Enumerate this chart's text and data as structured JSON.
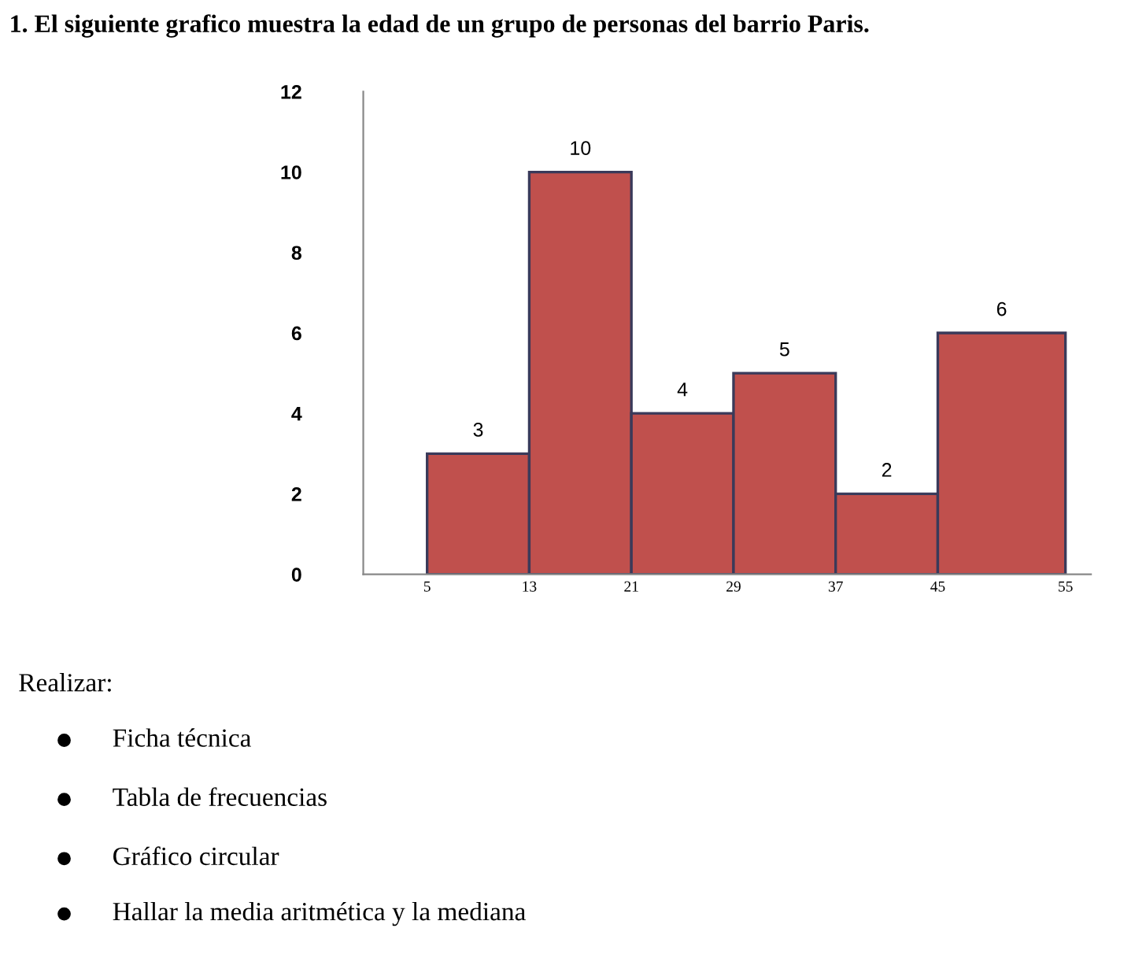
{
  "chart_data": {
    "type": "histogram",
    "title": "1. El siguiente grafico muestra la edad de un grupo de personas del barrio Paris.",
    "bins": [
      5,
      13,
      21,
      29,
      37,
      45,
      55
    ],
    "values": [
      3,
      10,
      4,
      5,
      2,
      6
    ],
    "color": "#c0504d",
    "data_labels": true,
    "xlim": [
      0,
      57
    ],
    "xticks": [
      5,
      13,
      21,
      29,
      37,
      45,
      55
    ],
    "ylim": [
      0,
      12
    ],
    "yticks": [
      0,
      2,
      4,
      6,
      8,
      10,
      12
    ],
    "grid": false,
    "legend": false,
    "annotations": [
      "Realizar:",
      "Ficha técnica",
      "Tabla de frecuencias",
      "Gráfico circular",
      "Hallar la media aritmética y la mediana"
    ]
  }
}
